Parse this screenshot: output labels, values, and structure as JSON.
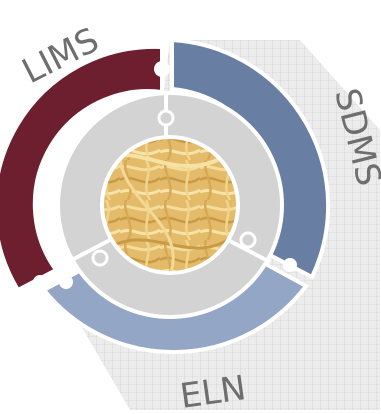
{
  "segments": [
    {
      "label": "LIMS",
      "color": "#6d1f30"
    },
    {
      "label": "SDMS",
      "color": "#687ea3"
    },
    {
      "label": "ELN",
      "color": "#93a6c6"
    }
  ],
  "ring_colors": {
    "inner": "#d3d3d3",
    "grid_background": "#e6e6e6",
    "grid_line": "#c4c4c4",
    "label": "#6e6e6e"
  },
  "center_image": "noodles-photo"
}
